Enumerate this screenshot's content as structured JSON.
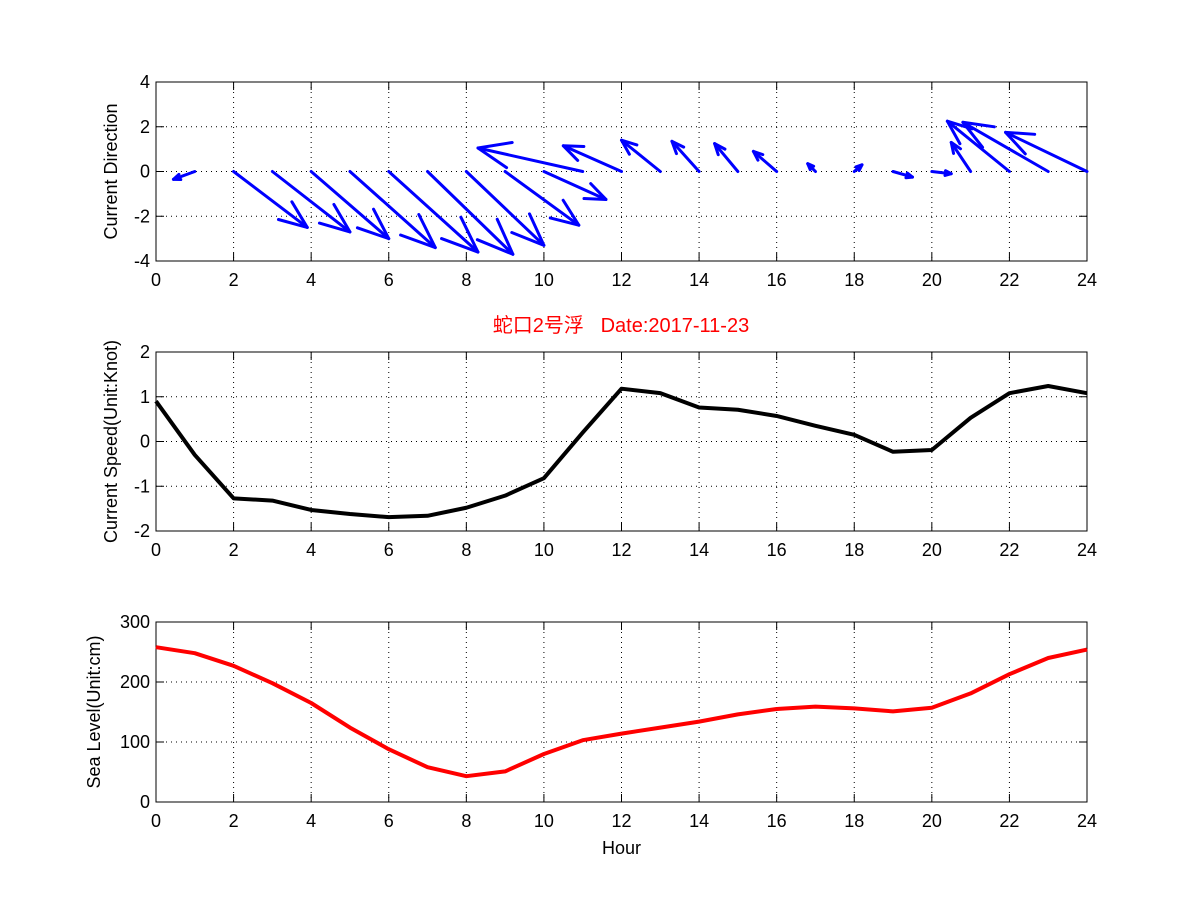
{
  "figure_title": "蛇口2号浮   Date:2017-11-23",
  "colors": {
    "direction": "#0000ff",
    "speed": "#000000",
    "sea_level": "#ff0000",
    "title": "#ff0000"
  },
  "chart_data": [
    {
      "type": "quiver",
      "ylabel": "Current Direction",
      "xlabel": "",
      "xlim": [
        0,
        24
      ],
      "ylim": [
        -4,
        4
      ],
      "xticks": [
        0,
        2,
        4,
        6,
        8,
        10,
        12,
        14,
        16,
        18,
        20,
        22,
        24
      ],
      "yticks": [
        -4,
        -2,
        0,
        2,
        4
      ],
      "grid": true,
      "arrows": [
        {
          "x": 1,
          "u": -0.55,
          "v": -0.35
        },
        {
          "x": 2,
          "u": 1.9,
          "v": -2.5
        },
        {
          "x": 3,
          "u": 2.0,
          "v": -2.7
        },
        {
          "x": 4,
          "u": 2.0,
          "v": -3.0
        },
        {
          "x": 5,
          "u": 2.2,
          "v": -3.4
        },
        {
          "x": 6,
          "u": 2.3,
          "v": -3.6
        },
        {
          "x": 7,
          "u": 2.2,
          "v": -3.7
        },
        {
          "x": 8,
          "u": 2.0,
          "v": -3.3
        },
        {
          "x": 9,
          "u": 1.9,
          "v": -2.4
        },
        {
          "x": 10,
          "u": 1.6,
          "v": -1.25
        },
        {
          "x": 11,
          "u": -2.7,
          "v": 1.05
        },
        {
          "x": 12,
          "u": -1.5,
          "v": 1.15
        },
        {
          "x": 13,
          "u": -1.0,
          "v": 1.4
        },
        {
          "x": 14,
          "u": -0.7,
          "v": 1.35
        },
        {
          "x": 15,
          "u": -0.6,
          "v": 1.25
        },
        {
          "x": 16,
          "u": -0.6,
          "v": 0.9
        },
        {
          "x": 17,
          "u": -0.2,
          "v": 0.35
        },
        {
          "x": 18,
          "u": 0.2,
          "v": 0.3
        },
        {
          "x": 19,
          "u": 0.5,
          "v": -0.25
        },
        {
          "x": 20,
          "u": 0.5,
          "v": -0.1
        },
        {
          "x": 21,
          "u": -0.5,
          "v": 1.3
        },
        {
          "x": 22,
          "u": -1.6,
          "v": 2.25
        },
        {
          "x": 23,
          "u": -2.2,
          "v": 2.2
        },
        {
          "x": 24,
          "u": -2.1,
          "v": 1.75
        }
      ]
    },
    {
      "type": "line",
      "ylabel": "Current Speed(Unit:Knot)",
      "xlabel": "",
      "xlim": [
        0,
        24
      ],
      "ylim": [
        -2,
        2
      ],
      "xticks": [
        0,
        2,
        4,
        6,
        8,
        10,
        12,
        14,
        16,
        18,
        20,
        22,
        24
      ],
      "yticks": [
        -2,
        -1,
        0,
        1,
        2
      ],
      "grid": true,
      "x": [
        0,
        1,
        2,
        3,
        4,
        5,
        6,
        7,
        8,
        9,
        10,
        11,
        12,
        13,
        14,
        15,
        16,
        17,
        18,
        19,
        20,
        21,
        22,
        23,
        24
      ],
      "values": [
        0.9,
        -0.3,
        -1.27,
        -1.32,
        -1.53,
        -1.62,
        -1.69,
        -1.66,
        -1.48,
        -1.21,
        -0.82,
        0.2,
        1.18,
        1.08,
        0.76,
        0.71,
        0.57,
        0.35,
        0.15,
        -0.23,
        -0.19,
        0.53,
        1.08,
        1.24,
        1.08
      ]
    },
    {
      "type": "line",
      "ylabel": "Sea Level(Unit:cm)",
      "xlabel": "Hour",
      "xlim": [
        0,
        24
      ],
      "ylim": [
        0,
        300
      ],
      "xticks": [
        0,
        2,
        4,
        6,
        8,
        10,
        12,
        14,
        16,
        18,
        20,
        22,
        24
      ],
      "yticks": [
        0,
        100,
        200,
        300
      ],
      "grid": true,
      "x": [
        0,
        1,
        2,
        3,
        4,
        5,
        6,
        7,
        8,
        9,
        10,
        11,
        12,
        13,
        14,
        15,
        16,
        17,
        18,
        19,
        20,
        21,
        22,
        23,
        24
      ],
      "values": [
        258,
        248,
        227,
        198,
        165,
        124,
        88,
        58,
        43,
        51,
        80,
        103,
        114,
        124,
        134,
        146,
        155,
        159,
        156,
        151,
        157,
        181,
        213,
        240,
        254
      ]
    }
  ]
}
